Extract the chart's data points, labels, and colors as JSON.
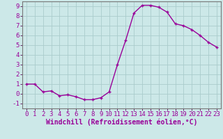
{
  "x": [
    0,
    1,
    2,
    3,
    4,
    5,
    6,
    7,
    8,
    9,
    10,
    11,
    12,
    13,
    14,
    15,
    16,
    17,
    18,
    19,
    20,
    21,
    22,
    23
  ],
  "y": [
    1,
    1,
    0.2,
    0.3,
    -0.2,
    -0.1,
    -0.3,
    -0.6,
    -0.6,
    -0.4,
    0.2,
    3.0,
    5.5,
    8.3,
    9.1,
    9.1,
    8.9,
    8.4,
    7.2,
    7.0,
    6.6,
    6.0,
    5.3,
    4.8
  ],
  "line_color": "#990099",
  "marker": "+",
  "bg_color": "#cce8e8",
  "grid_color": "#aacccc",
  "xlabel": "Windchill (Refroidissement éolien,°C)",
  "xlim": [
    -0.5,
    23.5
  ],
  "ylim": [
    -1.5,
    9.5
  ],
  "yticks": [
    -1,
    0,
    1,
    2,
    3,
    4,
    5,
    6,
    7,
    8,
    9
  ],
  "xticks": [
    0,
    1,
    2,
    3,
    4,
    5,
    6,
    7,
    8,
    9,
    10,
    11,
    12,
    13,
    14,
    15,
    16,
    17,
    18,
    19,
    20,
    21,
    22,
    23
  ],
  "tick_label_fontsize": 6.5,
  "xlabel_fontsize": 7.0,
  "line_width": 1.0,
  "marker_size": 3.5,
  "marker_edge_width": 1.0
}
